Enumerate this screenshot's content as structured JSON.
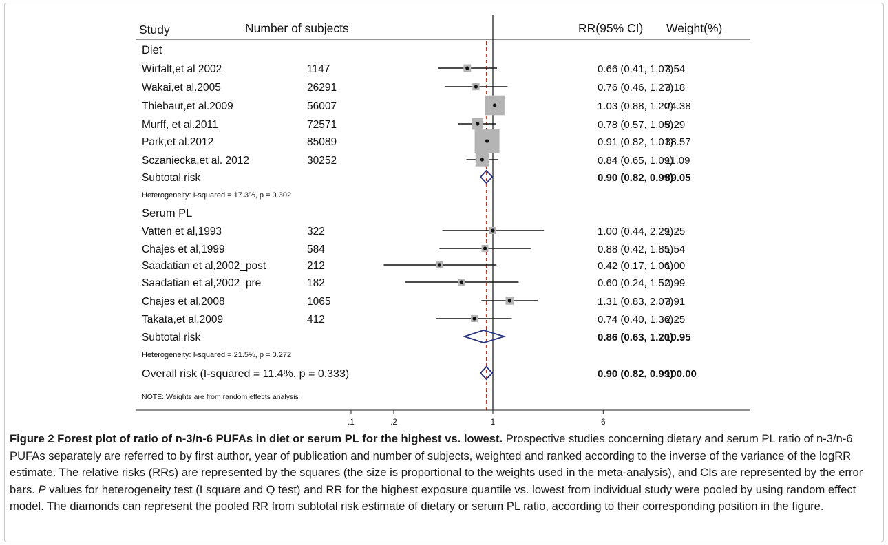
{
  "chart_data": {
    "type": "forest",
    "xscale": "log",
    "x_ticks": [
      ".1",
      ".2",
      "1",
      "6"
    ],
    "reference_line": 1,
    "pooled_estimate_line": 0.9,
    "headers": {
      "study": "Study",
      "subjects": "Number of subjects",
      "rr": "RR(95% CI)",
      "weight": "Weight(%)"
    },
    "groups": [
      {
        "name": "Diet",
        "studies": [
          {
            "label": "Wirfalt,et al 2002",
            "n": "1147",
            "rr": 0.66,
            "lo": 0.41,
            "hi": 1.07,
            "ci_text": "0.66 (0.41, 1.07)",
            "weight": 3.54,
            "weight_text": "3.54"
          },
          {
            "label": "Wakai,et al.2005",
            "n": "26291",
            "rr": 0.76,
            "lo": 0.46,
            "hi": 1.27,
            "ci_text": "0.76 (0.46, 1.27)",
            "weight": 3.18,
            "weight_text": "3.18"
          },
          {
            "label": "Thiebaut,et al.2009",
            "n": "56007",
            "rr": 1.03,
            "lo": 0.88,
            "hi": 1.2,
            "ci_text": "1.03 (0.88, 1.20)",
            "weight": 24.38,
            "weight_text": "24.38"
          },
          {
            "label": "Murff, et al.2011",
            "n": "72571",
            "rr": 0.78,
            "lo": 0.57,
            "hi": 1.05,
            "ci_text": "0.78 (0.57, 1.05)",
            "weight": 8.29,
            "weight_text": "8.29"
          },
          {
            "label": "Park,et al.2012",
            "n": "85089",
            "rr": 0.91,
            "lo": 0.82,
            "hi": 1.01,
            "ci_text": "0.91 (0.82, 1.01)",
            "weight": 38.57,
            "weight_text": "38.57"
          },
          {
            "label": "Sczaniecka,et al. 2012",
            "n": "30252",
            "rr": 0.84,
            "lo": 0.65,
            "hi": 1.09,
            "ci_text": "0.84 (0.65, 1.09)",
            "weight": 11.09,
            "weight_text": "11.09"
          }
        ],
        "subtotal": {
          "label": "Subtotal risk",
          "rr": 0.9,
          "lo": 0.82,
          "hi": 0.99,
          "ci_text": "0.90 (0.82, 0.99)",
          "weight_text": "89.05"
        },
        "heterogeneity": "Heterogeneity:  I-squared = 17.3%, p = 0.302"
      },
      {
        "name": "Serum PL",
        "studies": [
          {
            "label": "Vatten et al,1993",
            "n": "322",
            "rr": 1.0,
            "lo": 0.44,
            "hi": 2.29,
            "ci_text": "1.00 (0.44, 2.29)",
            "weight": 1.25,
            "weight_text": "1.25"
          },
          {
            "label": "Chajes et al,1999",
            "n": "584",
            "rr": 0.88,
            "lo": 0.42,
            "hi": 1.85,
            "ci_text": "0.88 (0.42, 1.85)",
            "weight": 1.54,
            "weight_text": "1.54"
          },
          {
            "label": "Saadatian et al,2002_post",
            "n": "212",
            "rr": 0.42,
            "lo": 0.17,
            "hi": 1.06,
            "ci_text": "0.42 (0.17, 1.06)",
            "weight": 1.0,
            "weight_text": "1.00"
          },
          {
            "label": "Saadatian et al,2002_pre",
            "n": "182",
            "rr": 0.6,
            "lo": 0.24,
            "hi": 1.52,
            "ci_text": "0.60 (0.24, 1.52)",
            "weight": 0.99,
            "weight_text": "0.99"
          },
          {
            "label": "Chajes et al,2008",
            "n": "1065",
            "rr": 1.31,
            "lo": 0.83,
            "hi": 2.07,
            "ci_text": "1.31 (0.83, 2.07)",
            "weight": 3.91,
            "weight_text": "3.91"
          },
          {
            "label": "Takata,et al,2009",
            "n": "412",
            "rr": 0.74,
            "lo": 0.4,
            "hi": 1.36,
            "ci_text": "0.74 (0.40, 1.36)",
            "weight": 2.25,
            "weight_text": "2.25"
          }
        ],
        "subtotal": {
          "label": "Subtotal risk",
          "rr": 0.86,
          "lo": 0.63,
          "hi": 1.2,
          "ci_text": "0.86 (0.63, 1.20)",
          "weight_text": "10.95"
        },
        "heterogeneity": "Heterogeneity:  I-squared = 21.5%, p = 0.272"
      }
    ],
    "overall": {
      "label": "Overall risk (I-squared = 11.4%, p = 0.333)",
      "rr": 0.9,
      "lo": 0.82,
      "hi": 0.99,
      "ci_text": "0.90 (0.82, 0.99)",
      "weight_text": "100.00"
    },
    "note": "NOTE: Weights are from random effects analysis"
  },
  "caption": {
    "title": "Figure 2 Forest plot of ratio of n-3/n-6 PUFAs in diet or serum PL for the highest vs. lowest.",
    "body_1": " Prospective studies concerning dietary and serum PL ratio of n-3/n-6 PUFAs separately are referred to by first author, year of publication and number of subjects, weighted and ranked according to the inverse of the variance of the logRR estimate. The relative risks (RRs) are represented by the squares (the size is proportional to the weights used in the meta-analysis), and CIs are represented by the error bars. ",
    "p_italic": "P",
    "body_2": " values for heterogeneity test (I square and Q test) and RR for the highest exposure quantile vs. lowest from individual study were pooled by using random effect model. The diamonds can represent the pooled RR from subtotal risk estimate of dietary or serum PL ratio, according to their corresponding position in the figure."
  },
  "colors": {
    "marker_box": "#b4b4b4",
    "diamond": "#2a3580",
    "pooled_line": "#c0392b",
    "text": "#111111"
  }
}
